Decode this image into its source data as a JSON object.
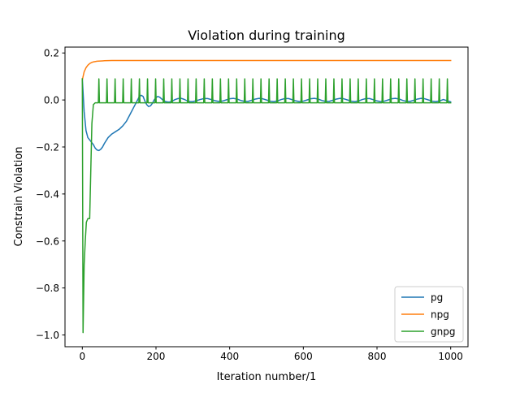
{
  "chart_data": {
    "type": "line",
    "title": "Violation during training",
    "xlabel": "Iteration number/1",
    "ylabel": "Constrain Violation",
    "xlim": [
      -47,
      1047
    ],
    "ylim": [
      -1.05,
      0.225
    ],
    "xticks": [
      0,
      200,
      400,
      600,
      800,
      1000
    ],
    "xtick_labels": [
      "0",
      "200",
      "400",
      "600",
      "800",
      "1000"
    ],
    "yticks": [
      -1.0,
      -0.8,
      -0.6,
      -0.4,
      -0.2,
      0.0,
      0.2
    ],
    "ytick_labels": [
      "−1.0",
      "−0.8",
      "−0.6",
      "−0.4",
      "−0.2",
      "0.0",
      "0.2"
    ],
    "grid": false,
    "legend_position": "lower-right",
    "series": [
      {
        "name": "pg",
        "color": "#1f77b4",
        "points": [
          [
            0,
            0.09
          ],
          [
            5,
            -0.05
          ],
          [
            10,
            -0.13
          ],
          [
            15,
            -0.16
          ],
          [
            20,
            -0.17
          ],
          [
            25,
            -0.18
          ],
          [
            30,
            -0.19
          ],
          [
            35,
            -0.205
          ],
          [
            40,
            -0.213
          ],
          [
            45,
            -0.215
          ],
          [
            50,
            -0.21
          ],
          [
            55,
            -0.2
          ],
          [
            60,
            -0.185
          ],
          [
            70,
            -0.16
          ],
          [
            80,
            -0.145
          ],
          [
            90,
            -0.135
          ],
          [
            100,
            -0.125
          ],
          [
            110,
            -0.11
          ],
          [
            120,
            -0.09
          ],
          [
            130,
            -0.06
          ],
          [
            140,
            -0.03
          ],
          [
            150,
            0.0
          ],
          [
            155,
            0.015
          ],
          [
            160,
            0.02
          ],
          [
            165,
            0.015
          ],
          [
            170,
            -0.005
          ],
          [
            175,
            -0.02
          ],
          [
            180,
            -0.028
          ],
          [
            185,
            -0.025
          ],
          [
            190,
            -0.015
          ],
          [
            195,
            0.0
          ],
          [
            200,
            0.01
          ],
          [
            205,
            0.015
          ],
          [
            210,
            0.012
          ],
          [
            215,
            0.005
          ],
          [
            220,
            -0.002
          ],
          [
            228,
            -0.008
          ],
          [
            236,
            -0.009
          ],
          [
            244,
            -0.005
          ],
          [
            252,
            0.002
          ],
          [
            260,
            0.006
          ],
          [
            268,
            0.007
          ],
          [
            276,
            0.003
          ],
          [
            284,
            -0.003
          ],
          [
            292,
            -0.007
          ],
          [
            300,
            -0.007
          ],
          [
            310,
            -0.003
          ],
          [
            320,
            0.002
          ],
          [
            330,
            0.006
          ],
          [
            340,
            0.006
          ],
          [
            350,
            0.002
          ],
          [
            360,
            -0.003
          ],
          [
            370,
            -0.006
          ],
          [
            380,
            -0.005
          ],
          [
            390,
            0.0
          ],
          [
            400,
            0.005
          ],
          [
            410,
            0.007
          ],
          [
            420,
            0.004
          ],
          [
            430,
            -0.002
          ],
          [
            440,
            -0.006
          ],
          [
            450,
            -0.006
          ],
          [
            460,
            -0.001
          ],
          [
            470,
            0.004
          ],
          [
            480,
            0.007
          ],
          [
            490,
            0.005
          ],
          [
            500,
            0.0
          ],
          [
            510,
            -0.005
          ],
          [
            520,
            -0.007
          ],
          [
            530,
            -0.004
          ],
          [
            540,
            0.002
          ],
          [
            550,
            0.006
          ],
          [
            560,
            0.006
          ],
          [
            570,
            0.001
          ],
          [
            580,
            -0.004
          ],
          [
            590,
            -0.007
          ],
          [
            600,
            -0.005
          ],
          [
            610,
            0.0
          ],
          [
            620,
            0.005
          ],
          [
            630,
            0.007
          ],
          [
            640,
            0.004
          ],
          [
            650,
            -0.002
          ],
          [
            660,
            -0.006
          ],
          [
            670,
            -0.006
          ],
          [
            680,
            -0.001
          ],
          [
            690,
            0.004
          ],
          [
            700,
            0.007
          ],
          [
            710,
            0.005
          ],
          [
            720,
            0.0
          ],
          [
            730,
            -0.005
          ],
          [
            740,
            -0.007
          ],
          [
            750,
            -0.004
          ],
          [
            760,
            0.002
          ],
          [
            770,
            0.006
          ],
          [
            780,
            0.006
          ],
          [
            790,
            0.001
          ],
          [
            800,
            -0.004
          ],
          [
            810,
            -0.007
          ],
          [
            820,
            -0.005
          ],
          [
            830,
            0.0
          ],
          [
            840,
            0.005
          ],
          [
            850,
            0.007
          ],
          [
            860,
            0.004
          ],
          [
            870,
            -0.002
          ],
          [
            880,
            -0.006
          ],
          [
            890,
            -0.006
          ],
          [
            900,
            -0.001
          ],
          [
            910,
            0.004
          ],
          [
            920,
            0.007
          ],
          [
            930,
            0.005
          ],
          [
            940,
            0.0
          ],
          [
            950,
            -0.005
          ],
          [
            960,
            -0.007
          ],
          [
            970,
            -0.004
          ],
          [
            980,
            0.002
          ],
          [
            990,
            -0.003
          ],
          [
            1000,
            -0.008
          ]
        ]
      },
      {
        "name": "npg",
        "color": "#ff7f0e",
        "points": [
          [
            0,
            0.085
          ],
          [
            5,
            0.12
          ],
          [
            10,
            0.137
          ],
          [
            15,
            0.148
          ],
          [
            20,
            0.155
          ],
          [
            25,
            0.159
          ],
          [
            30,
            0.162
          ],
          [
            40,
            0.165
          ],
          [
            50,
            0.166
          ],
          [
            60,
            0.167
          ],
          [
            80,
            0.168
          ],
          [
            100,
            0.168
          ],
          [
            200,
            0.168
          ],
          [
            400,
            0.168
          ],
          [
            600,
            0.168
          ],
          [
            800,
            0.168
          ],
          [
            1000,
            0.168
          ]
        ]
      },
      {
        "name": "gnpg",
        "color": "#2ca02c",
        "start_points": [
          [
            0,
            0.09
          ],
          [
            2,
            -0.99
          ],
          [
            5,
            -0.7
          ],
          [
            8,
            -0.6
          ],
          [
            11,
            -0.52
          ],
          [
            15,
            -0.505
          ],
          [
            20,
            -0.505
          ],
          [
            23,
            -0.3
          ],
          [
            26,
            -0.1
          ],
          [
            30,
            -0.02
          ],
          [
            35,
            -0.012
          ]
        ],
        "baseline": -0.012,
        "spike_peak": 0.09,
        "spike_positions": [
          45,
          67,
          89,
          111,
          133,
          155,
          177,
          199,
          221,
          243,
          265,
          287,
          309,
          331,
          353,
          375,
          397,
          419,
          441,
          463,
          485,
          507,
          529,
          551,
          573,
          595,
          617,
          639,
          661,
          683,
          705,
          727,
          749,
          771,
          793,
          815,
          837,
          859,
          881,
          903,
          925,
          947,
          969,
          991
        ],
        "end_x": 1000
      }
    ]
  }
}
